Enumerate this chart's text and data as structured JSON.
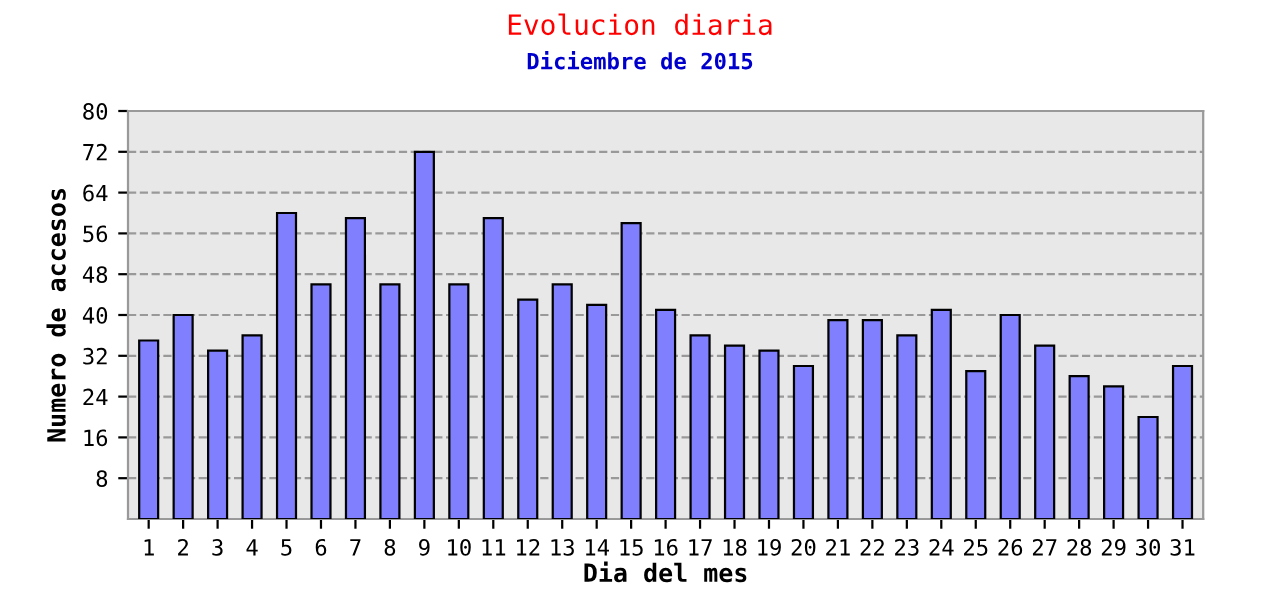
{
  "chart_data": {
    "type": "bar",
    "title": "Evolucion diaria",
    "subtitle": "Diciembre de 2015",
    "xlabel": "Dia del mes",
    "ylabel": "Numero de accesos",
    "categories": [
      "1",
      "2",
      "3",
      "4",
      "5",
      "6",
      "7",
      "8",
      "9",
      "10",
      "11",
      "12",
      "13",
      "14",
      "15",
      "16",
      "17",
      "18",
      "19",
      "20",
      "21",
      "22",
      "23",
      "24",
      "25",
      "26",
      "27",
      "28",
      "29",
      "30",
      "31"
    ],
    "values": [
      35,
      40,
      33,
      36,
      60,
      46,
      59,
      46,
      72,
      46,
      59,
      43,
      46,
      42,
      58,
      41,
      36,
      34,
      33,
      30,
      39,
      39,
      36,
      41,
      29,
      40,
      34,
      28,
      26,
      20,
      30
    ],
    "color": "#8080ff",
    "ylim": [
      0,
      80
    ],
    "yticks": [
      8,
      16,
      24,
      32,
      40,
      48,
      56,
      64,
      72,
      80
    ],
    "grid": "y",
    "line_style": "dashed"
  }
}
